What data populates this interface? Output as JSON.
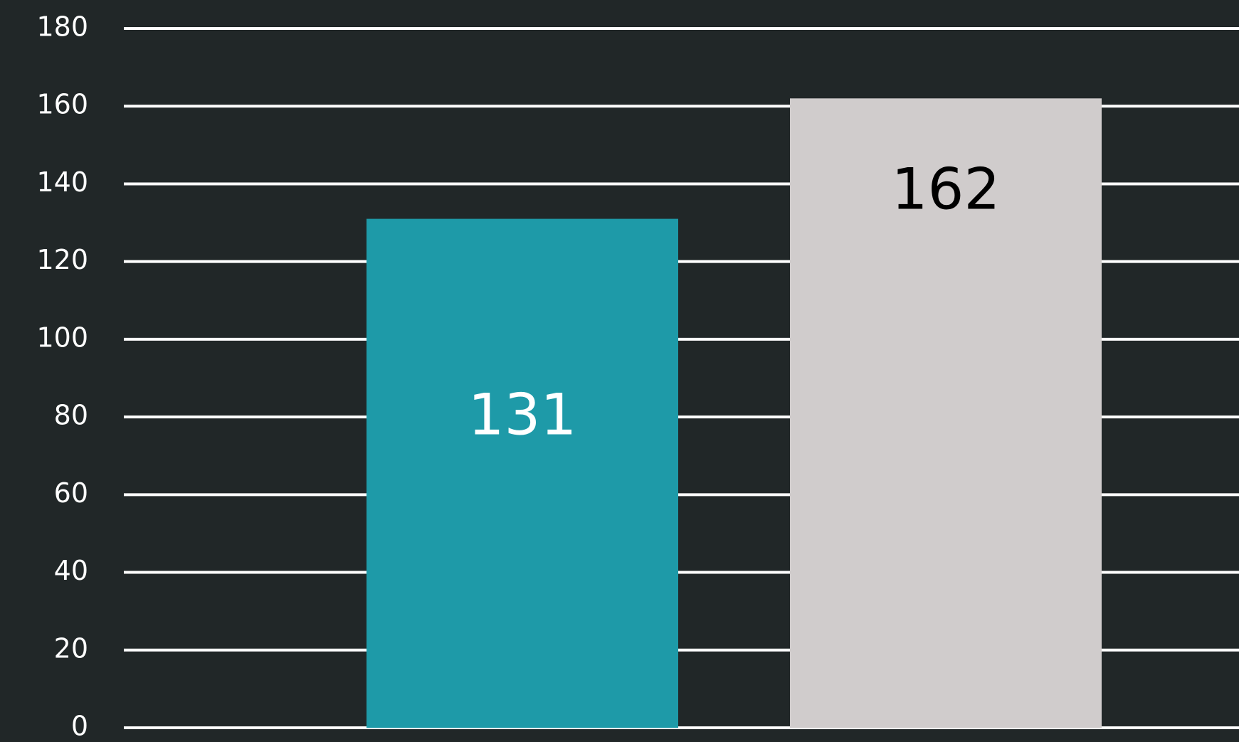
{
  "chart_data": {
    "type": "bar",
    "categories": [
      null,
      null
    ],
    "values": [
      131,
      162
    ],
    "colors": [
      "#1e9aa8",
      "#d0cccc"
    ],
    "label_colors": [
      "#ffffff",
      "#000000"
    ],
    "ylim": [
      0,
      180
    ],
    "yticks": [
      0,
      20,
      40,
      60,
      80,
      100,
      120,
      140,
      160,
      180
    ],
    "grid": true,
    "grid_color": "#ffffff",
    "background": "#212728"
  }
}
